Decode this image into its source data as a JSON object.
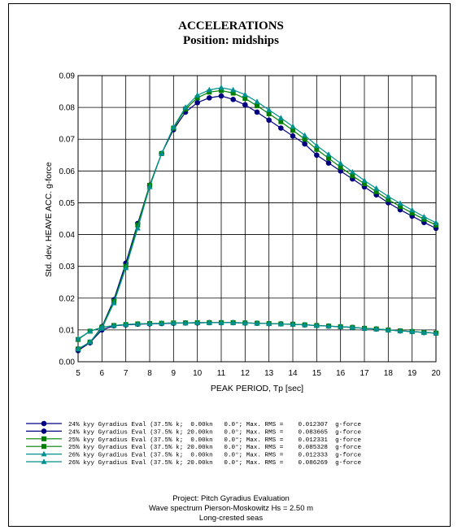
{
  "chart_data": {
    "type": "line",
    "title": "ACCELERATIONS",
    "subtitle": "Position: midships",
    "xlabel": "PEAK PERIOD, Tp [sec]",
    "ylabel": "Std. dev.  HEAVE ACC. g-force",
    "xlim": [
      5,
      20
    ],
    "ylim": [
      0,
      0.09
    ],
    "xticks": [
      "5",
      "6",
      "7",
      "8",
      "9",
      "10",
      "11",
      "12",
      "13",
      "14",
      "15",
      "16",
      "17",
      "18",
      "19",
      "20"
    ],
    "yticks": [
      "0.00",
      "0.01",
      "0.02",
      "0.03",
      "0.04",
      "0.05",
      "0.06",
      "0.07",
      "0.08",
      "0.09"
    ],
    "grid": true,
    "x": [
      5,
      5.5,
      6,
      6.5,
      7,
      7.5,
      8,
      8.5,
      9,
      9.5,
      10,
      10.5,
      11,
      11.5,
      12,
      12.5,
      13,
      13.5,
      14,
      14.5,
      15,
      15.5,
      16,
      16.5,
      17,
      17.5,
      18,
      18.5,
      19,
      19.5,
      20
    ],
    "series": [
      {
        "name": "24% kyy Gyradius Eval (37.5% k; 0.00kn 0.0°; Max. RMS = 0.012307 g-force",
        "color": "#000080",
        "marker": "circle",
        "values": [
          0.0035,
          0.006,
          0.01,
          0.0113,
          0.0116,
          0.0118,
          0.0119,
          0.012,
          0.0121,
          0.0122,
          0.0122,
          0.0123,
          0.0123,
          0.0123,
          0.0122,
          0.0121,
          0.012,
          0.0119,
          0.0118,
          0.0116,
          0.0114,
          0.0112,
          0.011,
          0.0108,
          0.0105,
          0.0103,
          0.01,
          0.0097,
          0.0095,
          0.0092,
          0.009
        ]
      },
      {
        "name": "24% kyy Gyradius Eval (37.5% k; 20.00kn 0.0°; Max. RMS = 0.083665 g-force",
        "color": "#000080",
        "marker": "circle",
        "values": [
          0.004,
          0.006,
          0.011,
          0.0195,
          0.031,
          0.0435,
          0.0555,
          0.0655,
          0.073,
          0.0785,
          0.0815,
          0.083,
          0.0836,
          0.0825,
          0.0808,
          0.0785,
          0.076,
          0.0735,
          0.071,
          0.0685,
          0.065,
          0.0625,
          0.06,
          0.0575,
          0.055,
          0.0525,
          0.05,
          0.0478,
          0.0458,
          0.0438,
          0.042
        ]
      },
      {
        "name": "25% kyy Gyradius Eval (37.5% k; 0.00kn 0.0°; Max. RMS = 0.012331 g-force",
        "color": "#008000",
        "marker": "square",
        "values": [
          0.007,
          0.0096,
          0.0108,
          0.0114,
          0.0117,
          0.0119,
          0.012,
          0.0121,
          0.0122,
          0.0122,
          0.0123,
          0.0123,
          0.0123,
          0.0123,
          0.0122,
          0.0121,
          0.012,
          0.0119,
          0.0118,
          0.0116,
          0.0114,
          0.0112,
          0.011,
          0.0108,
          0.0105,
          0.0103,
          0.01,
          0.0097,
          0.0095,
          0.0092,
          0.009
        ]
      },
      {
        "name": "25% kyy Gyradius Eval (37.5% k; 20.00kn 0.0°; Max. RMS = 0.085328 g-force",
        "color": "#008000",
        "marker": "square",
        "values": [
          0.004,
          0.0062,
          0.0108,
          0.019,
          0.03,
          0.043,
          0.0555,
          0.0655,
          0.0735,
          0.0795,
          0.083,
          0.0848,
          0.0853,
          0.0845,
          0.0828,
          0.0805,
          0.078,
          0.0755,
          0.0728,
          0.07,
          0.0668,
          0.064,
          0.0612,
          0.0585,
          0.056,
          0.0535,
          0.051,
          0.0488,
          0.0468,
          0.0448,
          0.043
        ]
      },
      {
        "name": "26% kyy Gyradius Eval (37.5% k; 0.00kn 0.0°; Max. RMS = 0.012333 g-force",
        "color": "#009090",
        "marker": "triangle",
        "values": [
          0.0072,
          0.0096,
          0.0108,
          0.0114,
          0.0117,
          0.0119,
          0.012,
          0.0121,
          0.0122,
          0.0122,
          0.0123,
          0.0123,
          0.0123,
          0.0123,
          0.0122,
          0.0121,
          0.012,
          0.0119,
          0.0118,
          0.0116,
          0.0114,
          0.0112,
          0.011,
          0.0108,
          0.0105,
          0.0103,
          0.01,
          0.0097,
          0.0095,
          0.0092,
          0.009
        ]
      },
      {
        "name": "26% kyy Gyradius Eval (37.5% k; 20.00kn 0.0°; Max. RMS = 0.086269 g-force",
        "color": "#009090",
        "marker": "triangle",
        "values": [
          0.004,
          0.0062,
          0.0105,
          0.0185,
          0.0295,
          0.042,
          0.055,
          0.0655,
          0.0738,
          0.08,
          0.0838,
          0.0855,
          0.0862,
          0.0855,
          0.084,
          0.0818,
          0.0792,
          0.0767,
          0.074,
          0.0712,
          0.068,
          0.0652,
          0.0624,
          0.0597,
          0.057,
          0.0545,
          0.052,
          0.0498,
          0.0477,
          0.0456,
          0.0437
        ]
      }
    ]
  },
  "legend": [
    "24% kyy Gyradius Eval (37.5% k;  0.00kn   0.0°; Max. RMS =    0.012307  g-force",
    "24% kyy Gyradius Eval (37.5% k; 20.00kn   0.0°; Max. RMS =    0.083665  g-force",
    "25% kyy Gyradius Eval (37.5% k;  0.00kn   0.0°; Max. RMS =    0.012331  g-force",
    "25% kyy Gyradius Eval (37.5% k; 20.00kn   0.0°; Max. RMS =    0.085328  g-force",
    "26% kyy Gyradius Eval (37.5% k;  0.00kn   0.0°; Max. RMS =    0.012333  g-force",
    "26% kyy Gyradius Eval (37.5% k; 20.00kn   0.0°; Max. RMS =    0.086269  g-force"
  ],
  "footer": {
    "project": "Project: Pitch Gyradius Evaluation",
    "spectrum": "Wave spectrum Pierson-Moskowitz  Hs =  2.50 m",
    "seas": "Long-crested seas"
  }
}
